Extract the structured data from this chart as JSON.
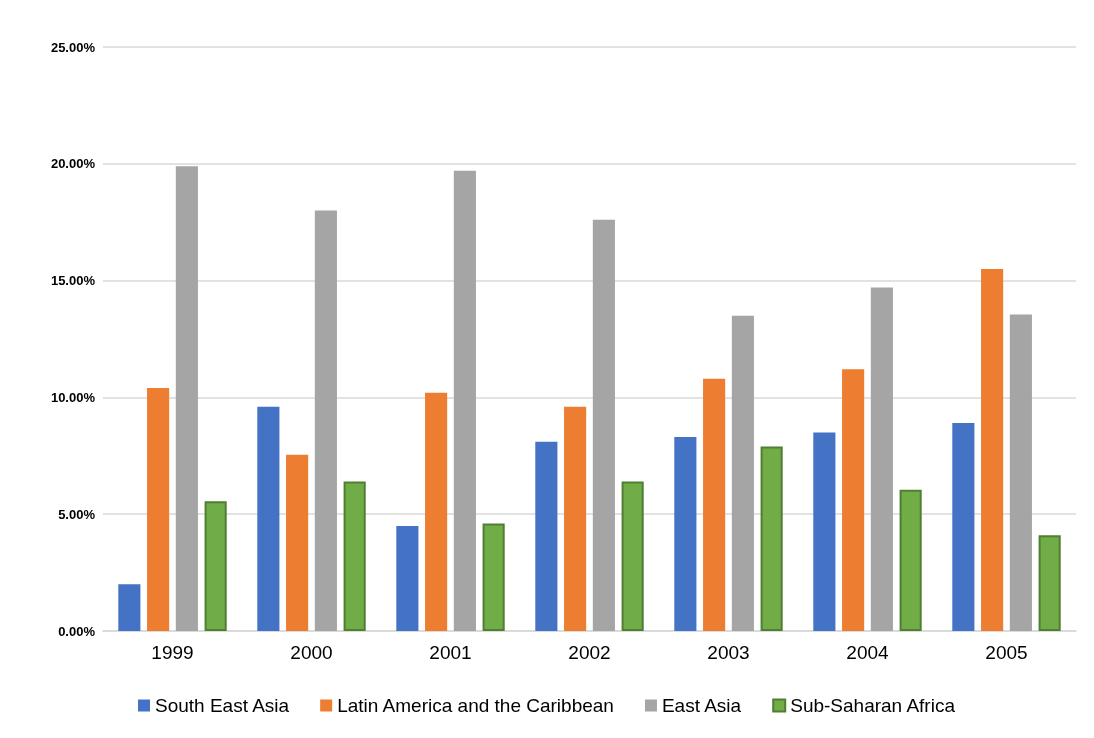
{
  "chart_data": {
    "type": "bar",
    "categories": [
      "1999",
      "2000",
      "2001",
      "2002",
      "2003",
      "2004",
      "2005"
    ],
    "series": [
      {
        "name": "South East Asia",
        "color": "#4472c4",
        "values": [
          2.0,
          9.6,
          4.5,
          8.1,
          8.3,
          8.5,
          8.9
        ]
      },
      {
        "name": "Latin America and the Caribbean",
        "color": "#ed7d31",
        "values": [
          10.4,
          7.55,
          10.2,
          9.6,
          10.8,
          11.2,
          15.5
        ]
      },
      {
        "name": "East Asia",
        "color": "#a5a5a5",
        "values": [
          19.9,
          18.0,
          19.7,
          17.6,
          13.5,
          14.7,
          13.55
        ]
      },
      {
        "name": "Sub-Saharan Africa",
        "color": "#70ad47",
        "values": [
          5.55,
          6.4,
          4.6,
          6.4,
          7.9,
          6.05,
          4.1
        ]
      }
    ],
    "ylim": [
      0,
      25
    ],
    "yticks": [
      {
        "value": 0,
        "label": "0.00%"
      },
      {
        "value": 5,
        "label": "5.00%"
      },
      {
        "value": 10,
        "label": "10.00%"
      },
      {
        "value": 15,
        "label": "15.00%"
      },
      {
        "value": 20,
        "label": "20.00%"
      },
      {
        "value": 25,
        "label": "25.00%"
      }
    ],
    "grid": "y",
    "legend": "bottom"
  }
}
